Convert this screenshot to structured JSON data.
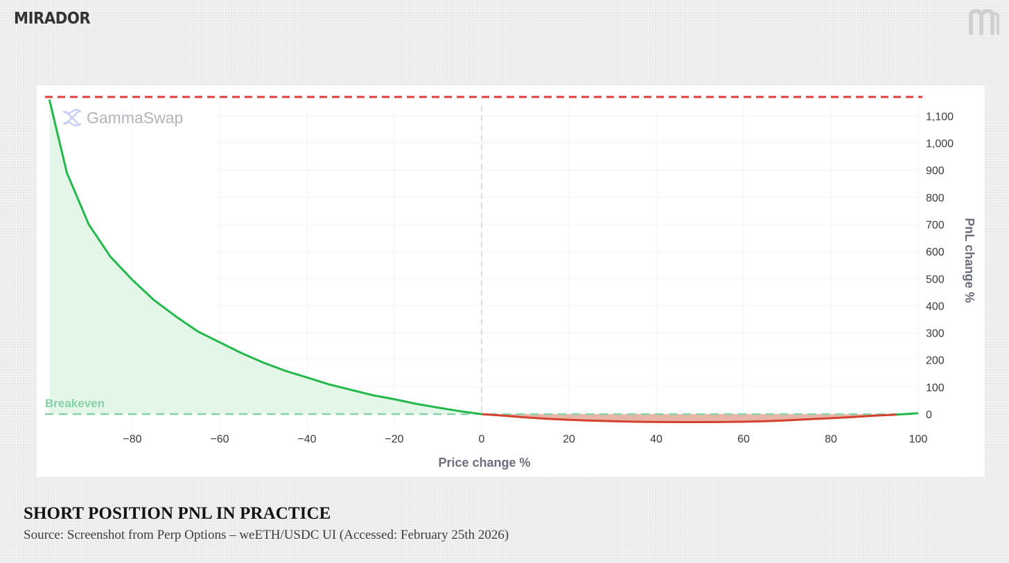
{
  "brand": {
    "name": "MIRADOR",
    "mark_icon": "mirador-m-logo-icon",
    "color": "#333333"
  },
  "chart_data": {
    "type": "area",
    "watermark": "GammaSwap",
    "xlabel": "Price change %",
    "ylabel": "PnL change %",
    "xlim": [
      -100,
      100
    ],
    "ylim": [
      -10,
      1160
    ],
    "x_ticks": [
      -80,
      -60,
      -40,
      -20,
      0,
      20,
      40,
      60,
      80,
      100
    ],
    "x_tick_labels": [
      "-80",
      "-60",
      "-40",
      "-20",
      "0",
      "20",
      "40",
      "60",
      "80",
      "100"
    ],
    "y_ticks": [
      0,
      100,
      200,
      300,
      400,
      500,
      600,
      700,
      800,
      900,
      1000,
      1100
    ],
    "y_tick_labels": [
      "0",
      "100",
      "200",
      "300",
      "400",
      "500",
      "600",
      "700",
      "800",
      "900",
      "1,000",
      "1,100"
    ],
    "y_axis_position": "right",
    "series": [
      {
        "name": "PnL",
        "x": [
          -99,
          -95,
          -90,
          -85,
          -80,
          -75,
          -70,
          -65,
          -60,
          -55,
          -50,
          -45,
          -40,
          -35,
          -30,
          -25,
          -20,
          -15,
          -10,
          -5,
          0,
          5,
          10,
          15,
          20,
          25,
          30,
          35,
          40,
          45,
          50,
          55,
          60,
          65,
          70,
          75,
          80,
          85,
          90,
          95,
          100
        ],
        "y": [
          1160,
          890,
          700,
          580,
          495,
          420,
          360,
          305,
          265,
          225,
          190,
          160,
          135,
          110,
          90,
          70,
          55,
          38,
          24,
          11,
          0,
          -6,
          -12,
          -17,
          -21,
          -24,
          -26,
          -28,
          -29,
          -29.5,
          -29.5,
          -29,
          -28,
          -26,
          -23,
          -19,
          -15,
          -11,
          -6,
          -2,
          3
        ]
      }
    ],
    "breakeven": {
      "label": "Breakeven",
      "value": 0
    },
    "max_line": {
      "value": 1160
    },
    "vertical_marker": {
      "x": 0
    },
    "colors": {
      "profit_line": "#22b84a",
      "profit_fill": "#e3f6e8",
      "loss_line": "#d4412e",
      "loss_fill": "#e8b5a9",
      "max_line": "#e03a3a",
      "breakeven": "#86d2a8",
      "grid": "#f1f3f5",
      "tick_text": "#3a3a3a",
      "axis_title": "#6b6f7b",
      "watermark": "#b0b4bb",
      "watermark_icon": "#c8cdf5"
    }
  },
  "caption": {
    "title": "SHORT POSITION PNL IN PRACTICE",
    "source": "Source: Screenshot from Perp Options – weETH/USDC UI (Accessed: February 25th 2026)"
  }
}
